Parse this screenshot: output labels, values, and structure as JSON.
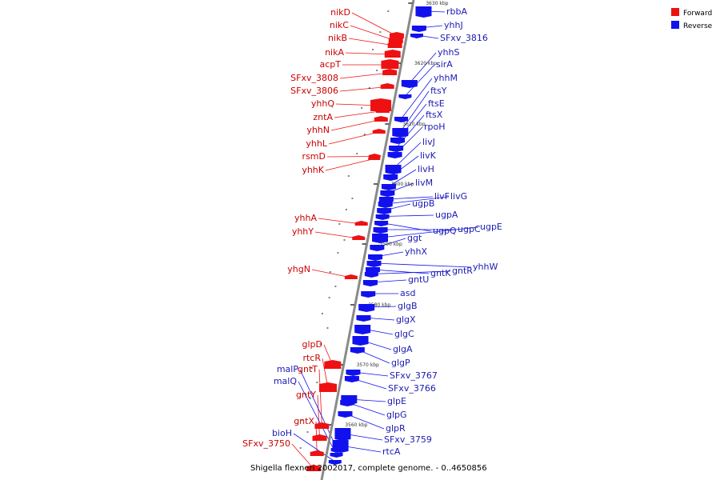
{
  "legend": {
    "forward_label": "Forward",
    "reverse_label": "Reverse",
    "forward_color": "#ee1111",
    "reverse_color": "#1111ee"
  },
  "caption": "Shigella flexneri 2002017, complete genome. - 0..4650856",
  "ticks": [
    "3630 kbp",
    "3620 kbp",
    "3610 kbp",
    "3600 kbp",
    "3590 kbp",
    "3580 kbp",
    "3570 kbp",
    "3560 kbp"
  ],
  "forward_genes": [
    "nikD",
    "nikC",
    "nikB",
    "nikA",
    "acpT",
    "SFxv_3808",
    "SFxv_3806",
    "yhhQ",
    "zntA",
    "yhhN",
    "yhhL",
    "rsmD",
    "yhhK",
    "yhhA",
    "yhhY",
    "yhgN",
    "glpD",
    "rtcR",
    "gntT",
    "gntY",
    "gntX",
    "SFxv_3750"
  ],
  "reverse_genes": [
    "rbbA",
    "yhhJ",
    "SFxv_3816",
    "yhhS",
    "sirA",
    "yhhM",
    "ftsY",
    "ftsE",
    "ftsX",
    "rpoH",
    "livJ",
    "livK",
    "livH",
    "livM",
    "livF",
    "livG",
    "ugpB",
    "ugpA",
    "ugpQ",
    "ugpC",
    "ugpE",
    "ggt",
    "yhhX",
    "yhhW",
    "gntK",
    "gntR",
    "gntU",
    "asd",
    "glgB",
    "glgX",
    "glgC",
    "glgA",
    "glgP",
    "SFxv_3767",
    "SFxv_3766",
    "glpE",
    "glpG",
    "glpR",
    "SFxv_3759",
    "rtcA",
    "malP",
    "malQ",
    "bioH"
  ]
}
